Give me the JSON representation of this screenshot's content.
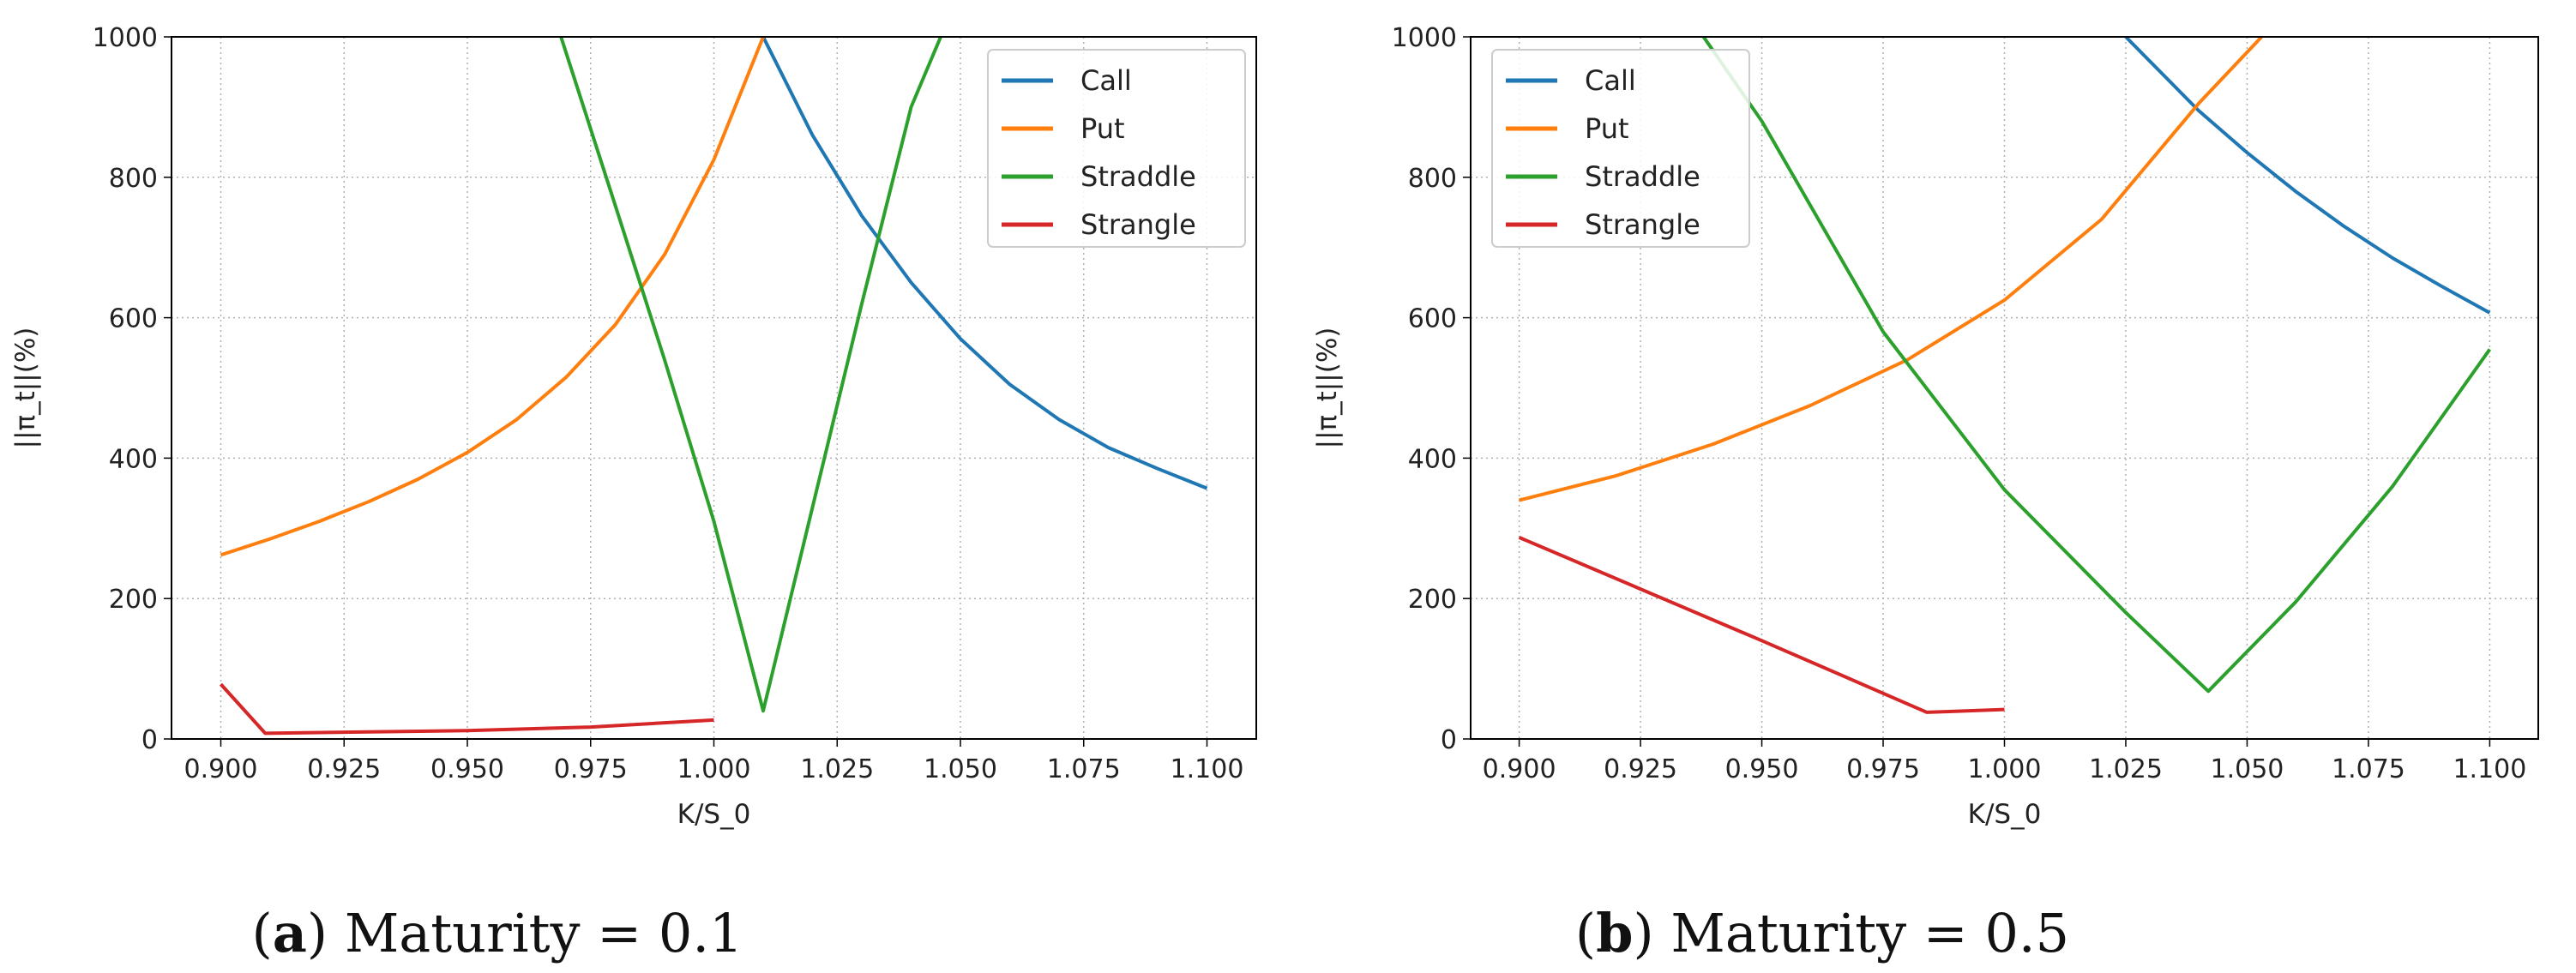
{
  "chart_data": [
    {
      "type": "line",
      "caption": {
        "letter": "a",
        "text": "Maturity = 0.1"
      },
      "xlabel": "K/S_0",
      "ylabel": "||π_t||(%)",
      "xlim": [
        0.89,
        1.11
      ],
      "ylim": [
        0,
        1000
      ],
      "xticks": [
        "0.900",
        "0.925",
        "0.950",
        "0.975",
        "1.000",
        "1.025",
        "1.050",
        "1.075",
        "1.100"
      ],
      "yticks": [
        "0",
        "200",
        "400",
        "600",
        "800",
        "1000"
      ],
      "grid": true,
      "legend": "top-right",
      "series": [
        {
          "name": "Call",
          "color": "#1f77b4",
          "x": [
            1.01,
            1.02,
            1.03,
            1.04,
            1.05,
            1.06,
            1.07,
            1.08,
            1.09,
            1.1
          ],
          "y": [
            1000,
            860,
            745,
            650,
            570,
            505,
            455,
            415,
            385,
            357
          ]
        },
        {
          "name": "Put",
          "color": "#ff7f0e",
          "x": [
            0.9,
            0.91,
            0.92,
            0.93,
            0.94,
            0.95,
            0.96,
            0.97,
            0.98,
            0.99,
            1.0,
            1.01
          ],
          "y": [
            262,
            285,
            310,
            338,
            370,
            408,
            455,
            515,
            590,
            690,
            825,
            1000
          ]
        },
        {
          "name": "Straddle",
          "color": "#2ca02c",
          "x": [
            0.969,
            0.98,
            0.99,
            1.0,
            1.01,
            1.02,
            1.03,
            1.04,
            1.046
          ],
          "y": [
            1000,
            760,
            540,
            310,
            40,
            330,
            620,
            900,
            1000
          ]
        },
        {
          "name": "Strangle",
          "color": "#d62728",
          "x": [
            0.9,
            0.909,
            0.95,
            0.975,
            1.0
          ],
          "y": [
            78,
            8,
            12,
            17,
            27
          ]
        }
      ]
    },
    {
      "type": "line",
      "caption": {
        "letter": "b",
        "text": "Maturity = 0.5"
      },
      "xlabel": "K/S_0",
      "ylabel": "||π_t||(%)",
      "xlim": [
        0.89,
        1.11
      ],
      "ylim": [
        0,
        1000
      ],
      "xticks": [
        "0.900",
        "0.925",
        "0.950",
        "0.975",
        "1.000",
        "1.025",
        "1.050",
        "1.075",
        "1.100"
      ],
      "yticks": [
        "0",
        "200",
        "400",
        "600",
        "800",
        "1000"
      ],
      "grid": true,
      "legend": "top-left",
      "series": [
        {
          "name": "Call",
          "color": "#1f77b4",
          "x": [
            1.025,
            1.04,
            1.05,
            1.06,
            1.07,
            1.08,
            1.09,
            1.1
          ],
          "y": [
            1000,
            895,
            835,
            780,
            730,
            685,
            645,
            607
          ]
        },
        {
          "name": "Put",
          "color": "#ff7f0e",
          "x": [
            0.9,
            0.92,
            0.94,
            0.96,
            0.98,
            1.0,
            1.02,
            1.04,
            1.053
          ],
          "y": [
            340,
            375,
            420,
            475,
            540,
            625,
            740,
            905,
            1000
          ]
        },
        {
          "name": "Straddle",
          "color": "#2ca02c",
          "x": [
            0.938,
            0.95,
            0.975,
            1.0,
            1.025,
            1.042,
            1.06,
            1.08,
            1.1
          ],
          "y": [
            1000,
            880,
            580,
            355,
            180,
            68,
            195,
            360,
            555
          ]
        },
        {
          "name": "Strangle",
          "color": "#d62728",
          "x": [
            0.9,
            0.95,
            0.984,
            1.0
          ],
          "y": [
            287,
            140,
            38,
            42
          ]
        }
      ]
    }
  ]
}
